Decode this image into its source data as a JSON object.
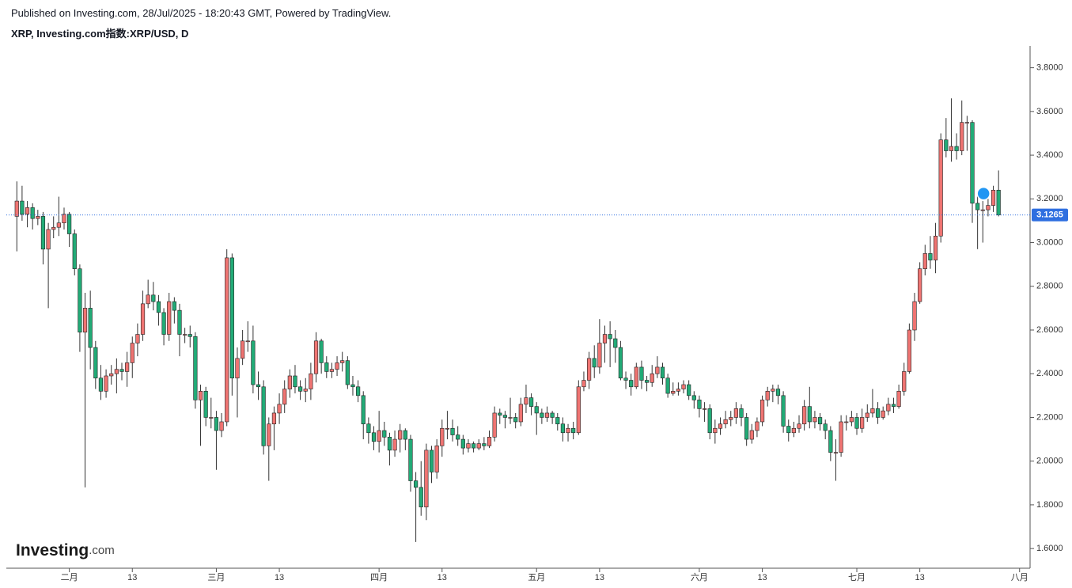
{
  "header": {
    "published": "Published on Investing.com, 28/Jul/2025 - 18:20:43 GMT, Powered by TradingView.",
    "symbol": "XRP, Investing.com指数:XRP/USD, D"
  },
  "logo": {
    "name": "Investing",
    "suffix": ".com"
  },
  "chart_data": {
    "type": "candlestick",
    "up_color": "#ef7472",
    "down_color": "#22ab77",
    "price_line_color": "#2f6fe0",
    "xlim": [
      "2025-01-20",
      "2025-08-03"
    ],
    "xticks": [
      {
        "value": "2025-02-01",
        "label": "二月"
      },
      {
        "value": "2025-02-13",
        "label": "13"
      },
      {
        "value": "2025-03-01",
        "label": "三月"
      },
      {
        "value": "2025-03-13",
        "label": "13"
      },
      {
        "value": "2025-04-01",
        "label": "四月"
      },
      {
        "value": "2025-04-13",
        "label": "13"
      },
      {
        "value": "2025-05-01",
        "label": "五月"
      },
      {
        "value": "2025-05-13",
        "label": "13"
      },
      {
        "value": "2025-06-01",
        "label": "六月"
      },
      {
        "value": "2025-06-13",
        "label": "13"
      },
      {
        "value": "2025-07-01",
        "label": "七月"
      },
      {
        "value": "2025-07-13",
        "label": "13"
      },
      {
        "value": "2025-08-01",
        "label": "八月"
      }
    ],
    "ylim": [
      1.51,
      3.9
    ],
    "yticks": [
      {
        "value": 1.6,
        "label": "1.6000"
      },
      {
        "value": 1.8,
        "label": "1.8000"
      },
      {
        "value": 2,
        "label": "2.0000"
      },
      {
        "value": 2.2,
        "label": "2.2000"
      },
      {
        "value": 2.4,
        "label": "2.4000"
      },
      {
        "value": 2.6,
        "label": "2.6000"
      },
      {
        "value": 2.8,
        "label": "2.8000"
      },
      {
        "value": 3,
        "label": "3.0000"
      },
      {
        "value": 3.2,
        "label": "3.2000"
      },
      {
        "value": 3.4,
        "label": "3.4000"
      },
      {
        "value": 3.6,
        "label": "3.6000"
      },
      {
        "value": 3.8,
        "label": "3.8000"
      }
    ],
    "x": [
      "2025-01-22",
      "2025-01-23",
      "2025-01-24",
      "2025-01-25",
      "2025-01-26",
      "2025-01-27",
      "2025-01-28",
      "2025-01-29",
      "2025-01-30",
      "2025-01-31",
      "2025-02-01",
      "2025-02-02",
      "2025-02-03",
      "2025-02-04",
      "2025-02-05",
      "2025-02-06",
      "2025-02-07",
      "2025-02-08",
      "2025-02-09",
      "2025-02-10",
      "2025-02-11",
      "2025-02-12",
      "2025-02-13",
      "2025-02-14",
      "2025-02-15",
      "2025-02-16",
      "2025-02-17",
      "2025-02-18",
      "2025-02-19",
      "2025-02-20",
      "2025-02-21",
      "2025-02-22",
      "2025-02-23",
      "2025-02-24",
      "2025-02-25",
      "2025-02-26",
      "2025-02-27",
      "2025-02-28",
      "2025-03-01",
      "2025-03-02",
      "2025-03-03",
      "2025-03-04",
      "2025-03-05",
      "2025-03-06",
      "2025-03-07",
      "2025-03-08",
      "2025-03-09",
      "2025-03-10",
      "2025-03-11",
      "2025-03-12",
      "2025-03-13",
      "2025-03-14",
      "2025-03-15",
      "2025-03-16",
      "2025-03-17",
      "2025-03-18",
      "2025-03-19",
      "2025-03-20",
      "2025-03-21",
      "2025-03-22",
      "2025-03-23",
      "2025-03-24",
      "2025-03-25",
      "2025-03-26",
      "2025-03-27",
      "2025-03-28",
      "2025-03-29",
      "2025-03-30",
      "2025-03-31",
      "2025-04-01",
      "2025-04-02",
      "2025-04-03",
      "2025-04-04",
      "2025-04-05",
      "2025-04-06",
      "2025-04-07",
      "2025-04-08",
      "2025-04-09",
      "2025-04-10",
      "2025-04-11",
      "2025-04-12",
      "2025-04-13",
      "2025-04-14",
      "2025-04-15",
      "2025-04-16",
      "2025-04-17",
      "2025-04-18",
      "2025-04-19",
      "2025-04-20",
      "2025-04-21",
      "2025-04-22",
      "2025-04-23",
      "2025-04-24",
      "2025-04-25",
      "2025-04-26",
      "2025-04-27",
      "2025-04-28",
      "2025-04-29",
      "2025-04-30",
      "2025-05-01",
      "2025-05-02",
      "2025-05-03",
      "2025-05-04",
      "2025-05-05",
      "2025-05-06",
      "2025-05-07",
      "2025-05-08",
      "2025-05-09",
      "2025-05-10",
      "2025-05-11",
      "2025-05-12",
      "2025-05-13",
      "2025-05-14",
      "2025-05-15",
      "2025-05-16",
      "2025-05-17",
      "2025-05-18",
      "2025-05-19",
      "2025-05-20",
      "2025-05-21",
      "2025-05-22",
      "2025-05-23",
      "2025-05-24",
      "2025-05-25",
      "2025-05-26",
      "2025-05-27",
      "2025-05-28",
      "2025-05-29",
      "2025-05-30",
      "2025-05-31",
      "2025-06-01",
      "2025-06-02",
      "2025-06-03",
      "2025-06-04",
      "2025-06-05",
      "2025-06-06",
      "2025-06-07",
      "2025-06-08",
      "2025-06-09",
      "2025-06-10",
      "2025-06-11",
      "2025-06-12",
      "2025-06-13",
      "2025-06-14",
      "2025-06-15",
      "2025-06-16",
      "2025-06-17",
      "2025-06-18",
      "2025-06-19",
      "2025-06-20",
      "2025-06-21",
      "2025-06-22",
      "2025-06-23",
      "2025-06-24",
      "2025-06-25",
      "2025-06-26",
      "2025-06-27",
      "2025-06-28",
      "2025-06-29",
      "2025-06-30",
      "2025-07-01",
      "2025-07-02",
      "2025-07-03",
      "2025-07-04",
      "2025-07-05",
      "2025-07-06",
      "2025-07-07",
      "2025-07-08",
      "2025-07-09",
      "2025-07-10",
      "2025-07-11",
      "2025-07-12",
      "2025-07-13",
      "2025-07-14",
      "2025-07-15",
      "2025-07-16",
      "2025-07-17",
      "2025-07-18",
      "2025-07-19",
      "2025-07-20",
      "2025-07-21",
      "2025-07-22",
      "2025-07-23",
      "2025-07-24",
      "2025-07-25",
      "2025-07-26",
      "2025-07-27",
      "2025-07-28"
    ],
    "open": [
      3.12,
      3.19,
      3.13,
      3.16,
      3.11,
      3.12,
      2.97,
      3.06,
      3.07,
      3.09,
      3.13,
      3.04,
      2.88,
      2.59,
      2.7,
      2.52,
      2.38,
      2.32,
      2.39,
      2.4,
      2.42,
      2.41,
      2.45,
      2.54,
      2.58,
      2.72,
      2.76,
      2.73,
      2.68,
      2.58,
      2.73,
      2.69,
      2.58,
      2.58,
      2.57,
      2.28,
      2.32,
      2.2,
      2.2,
      2.14,
      2.18,
      2.93,
      2.38,
      2.47,
      2.55,
      2.55,
      2.35,
      2.34,
      2.07,
      2.17,
      2.22,
      2.26,
      2.33,
      2.39,
      2.34,
      2.32,
      2.33,
      2.4,
      2.55,
      2.45,
      2.41,
      2.42,
      2.45,
      2.46,
      2.35,
      2.34,
      2.3,
      2.17,
      2.13,
      2.09,
      2.14,
      2.11,
      2.05,
      2.1,
      2.14,
      2.1,
      1.91,
      1.88,
      1.79,
      2.05,
      1.95,
      2.07,
      2.15,
      2.15,
      2.12,
      2.1,
      2.06,
      2.08,
      2.06,
      2.08,
      2.07,
      2.11,
      2.22,
      2.21,
      2.2,
      2.2,
      2.18,
      2.26,
      2.29,
      2.25,
      2.22,
      2.2,
      2.22,
      2.2,
      2.17,
      2.13,
      2.15,
      2.13,
      2.34,
      2.37,
      2.47,
      2.43,
      2.54,
      2.58,
      2.56,
      2.52,
      2.38,
      2.37,
      2.34,
      2.43,
      2.37,
      2.36,
      2.4,
      2.43,
      2.38,
      2.31,
      2.32,
      2.33,
      2.35,
      2.3,
      2.28,
      2.24,
      2.24,
      2.13,
      2.15,
      2.17,
      2.19,
      2.2,
      2.24,
      2.2,
      2.1,
      2.14,
      2.18,
      2.28,
      2.32,
      2.33,
      2.3,
      2.16,
      2.13,
      2.15,
      2.17,
      2.25,
      2.18,
      2.2,
      2.17,
      2.14,
      2.04,
      2.04,
      2.18,
      2.18,
      2.2,
      2.15,
      2.2,
      2.22,
      2.24,
      2.2,
      2.23,
      2.26,
      2.25,
      2.32,
      2.41,
      2.6,
      2.73,
      2.88,
      2.95,
      2.92,
      3.03,
      3.47,
      3.42,
      3.44,
      3.42,
      3.55,
      3.55,
      3.18,
      3.15,
      3.15,
      3.17,
      3.24
    ],
    "high": [
      3.28,
      3.26,
      3.19,
      3.18,
      3.15,
      3.14,
      3.09,
      3.12,
      3.21,
      3.16,
      3.14,
      3.06,
      2.9,
      2.77,
      2.78,
      2.55,
      2.44,
      2.42,
      2.44,
      2.47,
      2.45,
      2.5,
      2.57,
      2.63,
      2.78,
      2.83,
      2.82,
      2.76,
      2.7,
      2.77,
      2.75,
      2.72,
      2.61,
      2.62,
      2.59,
      2.35,
      2.34,
      2.29,
      2.23,
      2.22,
      2.97,
      2.95,
      2.52,
      2.6,
      2.64,
      2.62,
      2.41,
      2.37,
      2.2,
      2.25,
      2.31,
      2.37,
      2.42,
      2.44,
      2.37,
      2.38,
      2.45,
      2.59,
      2.56,
      2.48,
      2.45,
      2.48,
      2.5,
      2.48,
      2.39,
      2.37,
      2.32,
      2.2,
      2.16,
      2.23,
      2.18,
      2.13,
      2.14,
      2.17,
      2.15,
      2.12,
      1.95,
      2.0,
      2.08,
      2.07,
      2.1,
      2.19,
      2.23,
      2.19,
      2.16,
      2.12,
      2.1,
      2.09,
      2.1,
      2.11,
      2.14,
      2.25,
      2.24,
      2.23,
      2.29,
      2.22,
      2.29,
      2.35,
      2.31,
      2.27,
      2.24,
      2.25,
      2.23,
      2.22,
      2.2,
      2.17,
      2.18,
      2.37,
      2.41,
      2.5,
      2.53,
      2.65,
      2.62,
      2.64,
      2.6,
      2.55,
      2.41,
      2.4,
      2.45,
      2.46,
      2.39,
      2.44,
      2.48,
      2.45,
      2.4,
      2.36,
      2.36,
      2.37,
      2.37,
      2.32,
      2.3,
      2.27,
      2.26,
      2.19,
      2.2,
      2.23,
      2.23,
      2.27,
      2.26,
      2.22,
      2.17,
      2.2,
      2.3,
      2.34,
      2.35,
      2.35,
      2.32,
      2.19,
      2.18,
      2.21,
      2.28,
      2.34,
      2.23,
      2.22,
      2.19,
      2.16,
      2.1,
      2.21,
      2.21,
      2.23,
      2.22,
      2.24,
      2.26,
      2.33,
      2.27,
      2.25,
      2.29,
      2.29,
      2.35,
      2.45,
      2.63,
      2.77,
      2.91,
      2.99,
      3.03,
      3.09,
      3.5,
      3.57,
      3.66,
      3.5,
      3.65,
      3.58,
      3.56,
      3.22,
      3.19,
      3.2,
      3.26,
      3.33
    ],
    "low": [
      2.96,
      3.1,
      3.07,
      3.06,
      3.08,
      2.9,
      2.7,
      3.02,
      3.03,
      3.06,
      2.98,
      2.85,
      2.5,
      1.88,
      2.42,
      2.33,
      2.28,
      2.29,
      2.35,
      2.31,
      2.37,
      2.34,
      2.38,
      2.48,
      2.55,
      2.7,
      2.69,
      2.62,
      2.53,
      2.55,
      2.63,
      2.48,
      2.54,
      2.52,
      2.24,
      2.07,
      2.16,
      2.15,
      1.96,
      2.11,
      2.16,
      2.3,
      2.2,
      2.44,
      2.5,
      2.31,
      2.28,
      2.03,
      1.91,
      2.05,
      2.17,
      2.22,
      2.29,
      2.31,
      2.28,
      2.27,
      2.28,
      2.36,
      2.4,
      2.38,
      2.38,
      2.39,
      2.41,
      2.33,
      2.3,
      2.27,
      2.1,
      2.08,
      2.05,
      2.04,
      2.07,
      1.98,
      2.02,
      2.04,
      2.05,
      1.86,
      1.63,
      1.75,
      1.73,
      1.9,
      1.92,
      2.02,
      2.1,
      2.09,
      2.07,
      2.03,
      2.04,
      2.04,
      2.05,
      2.05,
      2.06,
      2.09,
      2.17,
      2.15,
      2.17,
      2.15,
      2.16,
      2.22,
      2.21,
      2.12,
      2.17,
      2.18,
      2.17,
      2.14,
      2.09,
      2.09,
      2.1,
      2.12,
      2.32,
      2.33,
      2.38,
      2.4,
      2.45,
      2.43,
      2.45,
      2.37,
      2.33,
      2.3,
      2.33,
      2.33,
      2.32,
      2.34,
      2.38,
      2.35,
      2.29,
      2.3,
      2.3,
      2.31,
      2.28,
      2.24,
      2.2,
      2.18,
      2.1,
      2.08,
      2.12,
      2.15,
      2.16,
      2.17,
      2.16,
      2.07,
      2.08,
      2.11,
      2.16,
      2.25,
      2.27,
      2.26,
      2.13,
      2.09,
      2.11,
      2.13,
      2.14,
      2.15,
      2.15,
      2.14,
      2.1,
      2.0,
      1.91,
      2.02,
      2.14,
      2.16,
      2.12,
      2.13,
      2.18,
      2.2,
      2.17,
      2.19,
      2.21,
      2.22,
      2.24,
      2.3,
      2.4,
      2.55,
      2.72,
      2.85,
      2.88,
      2.86,
      3.0,
      3.39,
      3.37,
      3.38,
      3.4,
      3.42,
      3.09,
      2.97,
      3.0,
      3.12,
      3.14,
      3.12
    ],
    "close": [
      3.19,
      3.13,
      3.16,
      3.11,
      3.12,
      2.97,
      3.06,
      3.07,
      3.09,
      3.13,
      3.04,
      2.88,
      2.59,
      2.7,
      2.52,
      2.38,
      2.32,
      2.39,
      2.4,
      2.42,
      2.41,
      2.45,
      2.54,
      2.58,
      2.72,
      2.76,
      2.73,
      2.68,
      2.58,
      2.73,
      2.69,
      2.58,
      2.58,
      2.57,
      2.28,
      2.32,
      2.2,
      2.2,
      2.14,
      2.18,
      2.93,
      2.38,
      2.47,
      2.55,
      2.55,
      2.35,
      2.34,
      2.07,
      2.17,
      2.22,
      2.26,
      2.33,
      2.39,
      2.34,
      2.32,
      2.33,
      2.4,
      2.55,
      2.45,
      2.41,
      2.42,
      2.45,
      2.46,
      2.35,
      2.34,
      2.3,
      2.17,
      2.13,
      2.09,
      2.14,
      2.11,
      2.05,
      2.1,
      2.14,
      2.1,
      1.91,
      1.88,
      1.79,
      2.05,
      1.95,
      2.07,
      2.15,
      2.15,
      2.12,
      2.1,
      2.06,
      2.08,
      2.06,
      2.08,
      2.07,
      2.11,
      2.22,
      2.21,
      2.2,
      2.2,
      2.18,
      2.26,
      2.29,
      2.25,
      2.22,
      2.2,
      2.22,
      2.2,
      2.17,
      2.13,
      2.15,
      2.13,
      2.34,
      2.37,
      2.47,
      2.43,
      2.54,
      2.58,
      2.56,
      2.52,
      2.38,
      2.37,
      2.34,
      2.43,
      2.37,
      2.36,
      2.4,
      2.43,
      2.38,
      2.31,
      2.32,
      2.33,
      2.35,
      2.3,
      2.28,
      2.24,
      2.24,
      2.13,
      2.15,
      2.17,
      2.19,
      2.2,
      2.24,
      2.2,
      2.1,
      2.14,
      2.18,
      2.28,
      2.32,
      2.33,
      2.3,
      2.16,
      2.13,
      2.15,
      2.17,
      2.25,
      2.18,
      2.2,
      2.17,
      2.14,
      2.04,
      2.04,
      2.18,
      2.18,
      2.2,
      2.15,
      2.2,
      2.22,
      2.24,
      2.2,
      2.23,
      2.26,
      2.25,
      2.32,
      2.41,
      2.6,
      2.73,
      2.88,
      2.95,
      2.92,
      3.03,
      3.47,
      3.42,
      3.44,
      3.42,
      3.55,
      3.55,
      3.18,
      3.15,
      3.15,
      3.17,
      3.24,
      3.1265
    ]
  }
}
